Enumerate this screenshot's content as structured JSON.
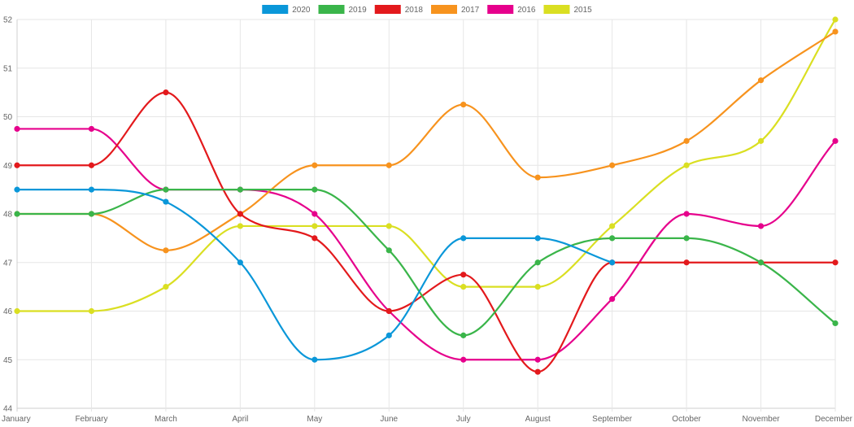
{
  "chart_data": {
    "type": "line",
    "categories": [
      "January",
      "February",
      "March",
      "April",
      "May",
      "June",
      "July",
      "August",
      "September",
      "October",
      "November",
      "December"
    ],
    "ylim": [
      44,
      52
    ],
    "yticks": [
      44,
      45,
      46,
      47,
      48,
      49,
      50,
      51,
      52
    ],
    "grid": true,
    "legend_position": "top-center",
    "series": [
      {
        "name": "2020",
        "color": "#0a97d9",
        "values": [
          48.5,
          48.5,
          48.25,
          47,
          45,
          45.5,
          47.5,
          47.5,
          47,
          null,
          null,
          null
        ]
      },
      {
        "name": "2019",
        "color": "#3ab54a",
        "values": [
          48,
          48,
          48.5,
          48.5,
          48.5,
          47.25,
          45.5,
          47,
          47.5,
          47.5,
          47,
          45.75
        ]
      },
      {
        "name": "2018",
        "color": "#e3191c",
        "values": [
          49,
          49,
          50.5,
          48,
          47.5,
          46,
          46.75,
          44.75,
          47,
          47,
          47,
          47
        ]
      },
      {
        "name": "2017",
        "color": "#f7931e",
        "values": [
          48,
          48,
          47.25,
          48,
          49,
          49,
          50.25,
          48.75,
          49,
          49.5,
          50.75,
          51.75
        ]
      },
      {
        "name": "2016",
        "color": "#e6008c",
        "values": [
          49.75,
          49.75,
          48.5,
          48.5,
          48,
          46,
          45,
          45,
          46.25,
          48,
          47.75,
          49.5
        ]
      },
      {
        "name": "2015",
        "color": "#dadf22",
        "values": [
          46,
          46,
          46.5,
          47.75,
          47.75,
          47.75,
          46.5,
          46.5,
          47.75,
          49,
          49.5,
          52
        ]
      }
    ]
  }
}
